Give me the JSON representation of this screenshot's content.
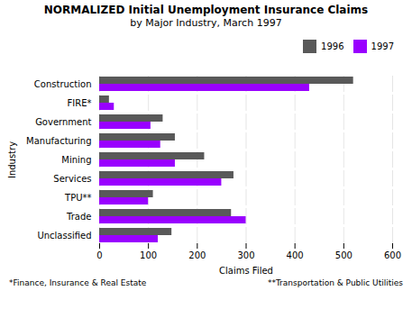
{
  "chart_data": {
    "type": "bar",
    "orientation": "horizontal",
    "title": "NORMALIZED Initial Unemployment Insurance Claims",
    "subtitle": "by Major Industry, March 1997",
    "categories": [
      "Construction",
      "FIRE*",
      "Government",
      "Manufacturing",
      "Mining",
      "Services",
      "TPU**",
      "Trade",
      "Unclassified"
    ],
    "series": [
      {
        "name": "1996",
        "color": "#595959",
        "values": [
          520,
          20,
          130,
          155,
          215,
          275,
          110,
          270,
          148
        ]
      },
      {
        "name": "1997",
        "color": "#9900ff",
        "values": [
          430,
          30,
          105,
          125,
          155,
          250,
          100,
          300,
          120
        ]
      }
    ],
    "xlabel": "Claims Filed",
    "ylabel": "Industry",
    "xlim": [
      0,
      600
    ],
    "xticks": [
      0,
      100,
      200,
      300,
      400,
      500,
      600
    ],
    "grid": true,
    "legend": "upper right",
    "annotations": [
      "*Finance, Insurance & Real Estate",
      "**Transportation & Public Utilities"
    ]
  }
}
